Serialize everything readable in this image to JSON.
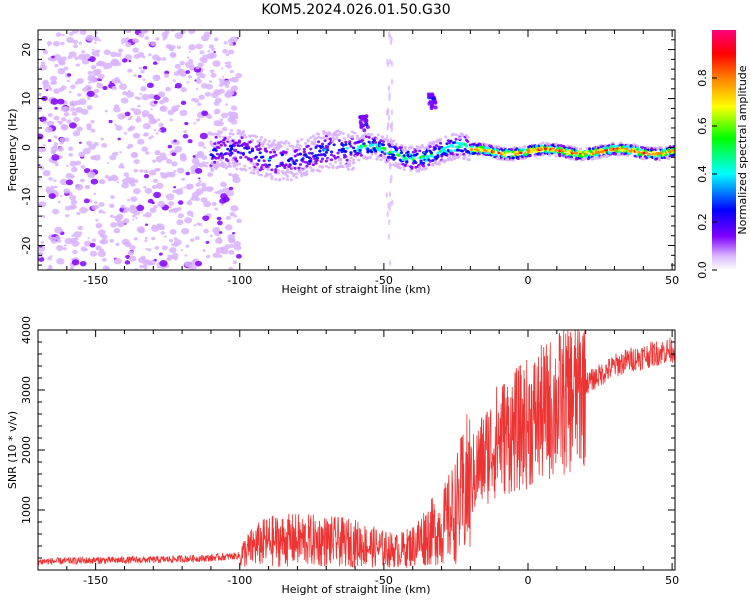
{
  "title": "KOM5.2024.026.01.50.G30",
  "chart_data": [
    {
      "type": "heatmap",
      "xlabel": "Height of straight line (km)",
      "ylabel": "Frequency (Hz)",
      "xlim": [
        -170,
        51
      ],
      "ylim": [
        -25,
        24
      ],
      "xticks": [
        "-150",
        "-100",
        "-50",
        "0",
        "50"
      ],
      "yticks": [
        "20",
        "10",
        "0",
        "-10",
        "-20"
      ],
      "colorbar": {
        "label": "Normalized spectral amplitude",
        "ticks": [
          "0.0",
          "0.2",
          "0.4",
          "0.6",
          "0.8"
        ],
        "range": [
          0,
          1
        ]
      },
      "colors": [
        "#ffffff",
        "#d9b3ff",
        "#8000ff",
        "#0000ff",
        "#00ffff",
        "#00ff00",
        "#ffff00",
        "#ff8000",
        "#ff0000",
        "#ff0080"
      ]
    },
    {
      "type": "line",
      "xlabel": "Height of straight line (km)",
      "ylabel": "SNR (10 * v/v)",
      "xlim": [
        -170,
        51
      ],
      "ylim": [
        0,
        4000
      ],
      "xticks": [
        "-150",
        "-100",
        "-50",
        "0",
        "50"
      ],
      "yticks": [
        "4000",
        "3000",
        "2000",
        "1000"
      ],
      "color": "#ee3333",
      "x": [
        -170,
        -150,
        -130,
        -110,
        -100,
        -95,
        -90,
        -80,
        -70,
        -60,
        -50,
        -45,
        -40,
        -35,
        -30,
        -25,
        -20,
        -15,
        -10,
        -5,
        0,
        5,
        10,
        15,
        20,
        25,
        30,
        35,
        40,
        45,
        51
      ],
      "values": [
        140,
        160,
        170,
        200,
        240,
        400,
        480,
        500,
        480,
        450,
        350,
        320,
        400,
        600,
        700,
        1000,
        1500,
        1900,
        2200,
        2300,
        2450,
        2600,
        2750,
        2900,
        3100,
        3250,
        3400,
        3500,
        3560,
        3620,
        3680
      ]
    }
  ]
}
